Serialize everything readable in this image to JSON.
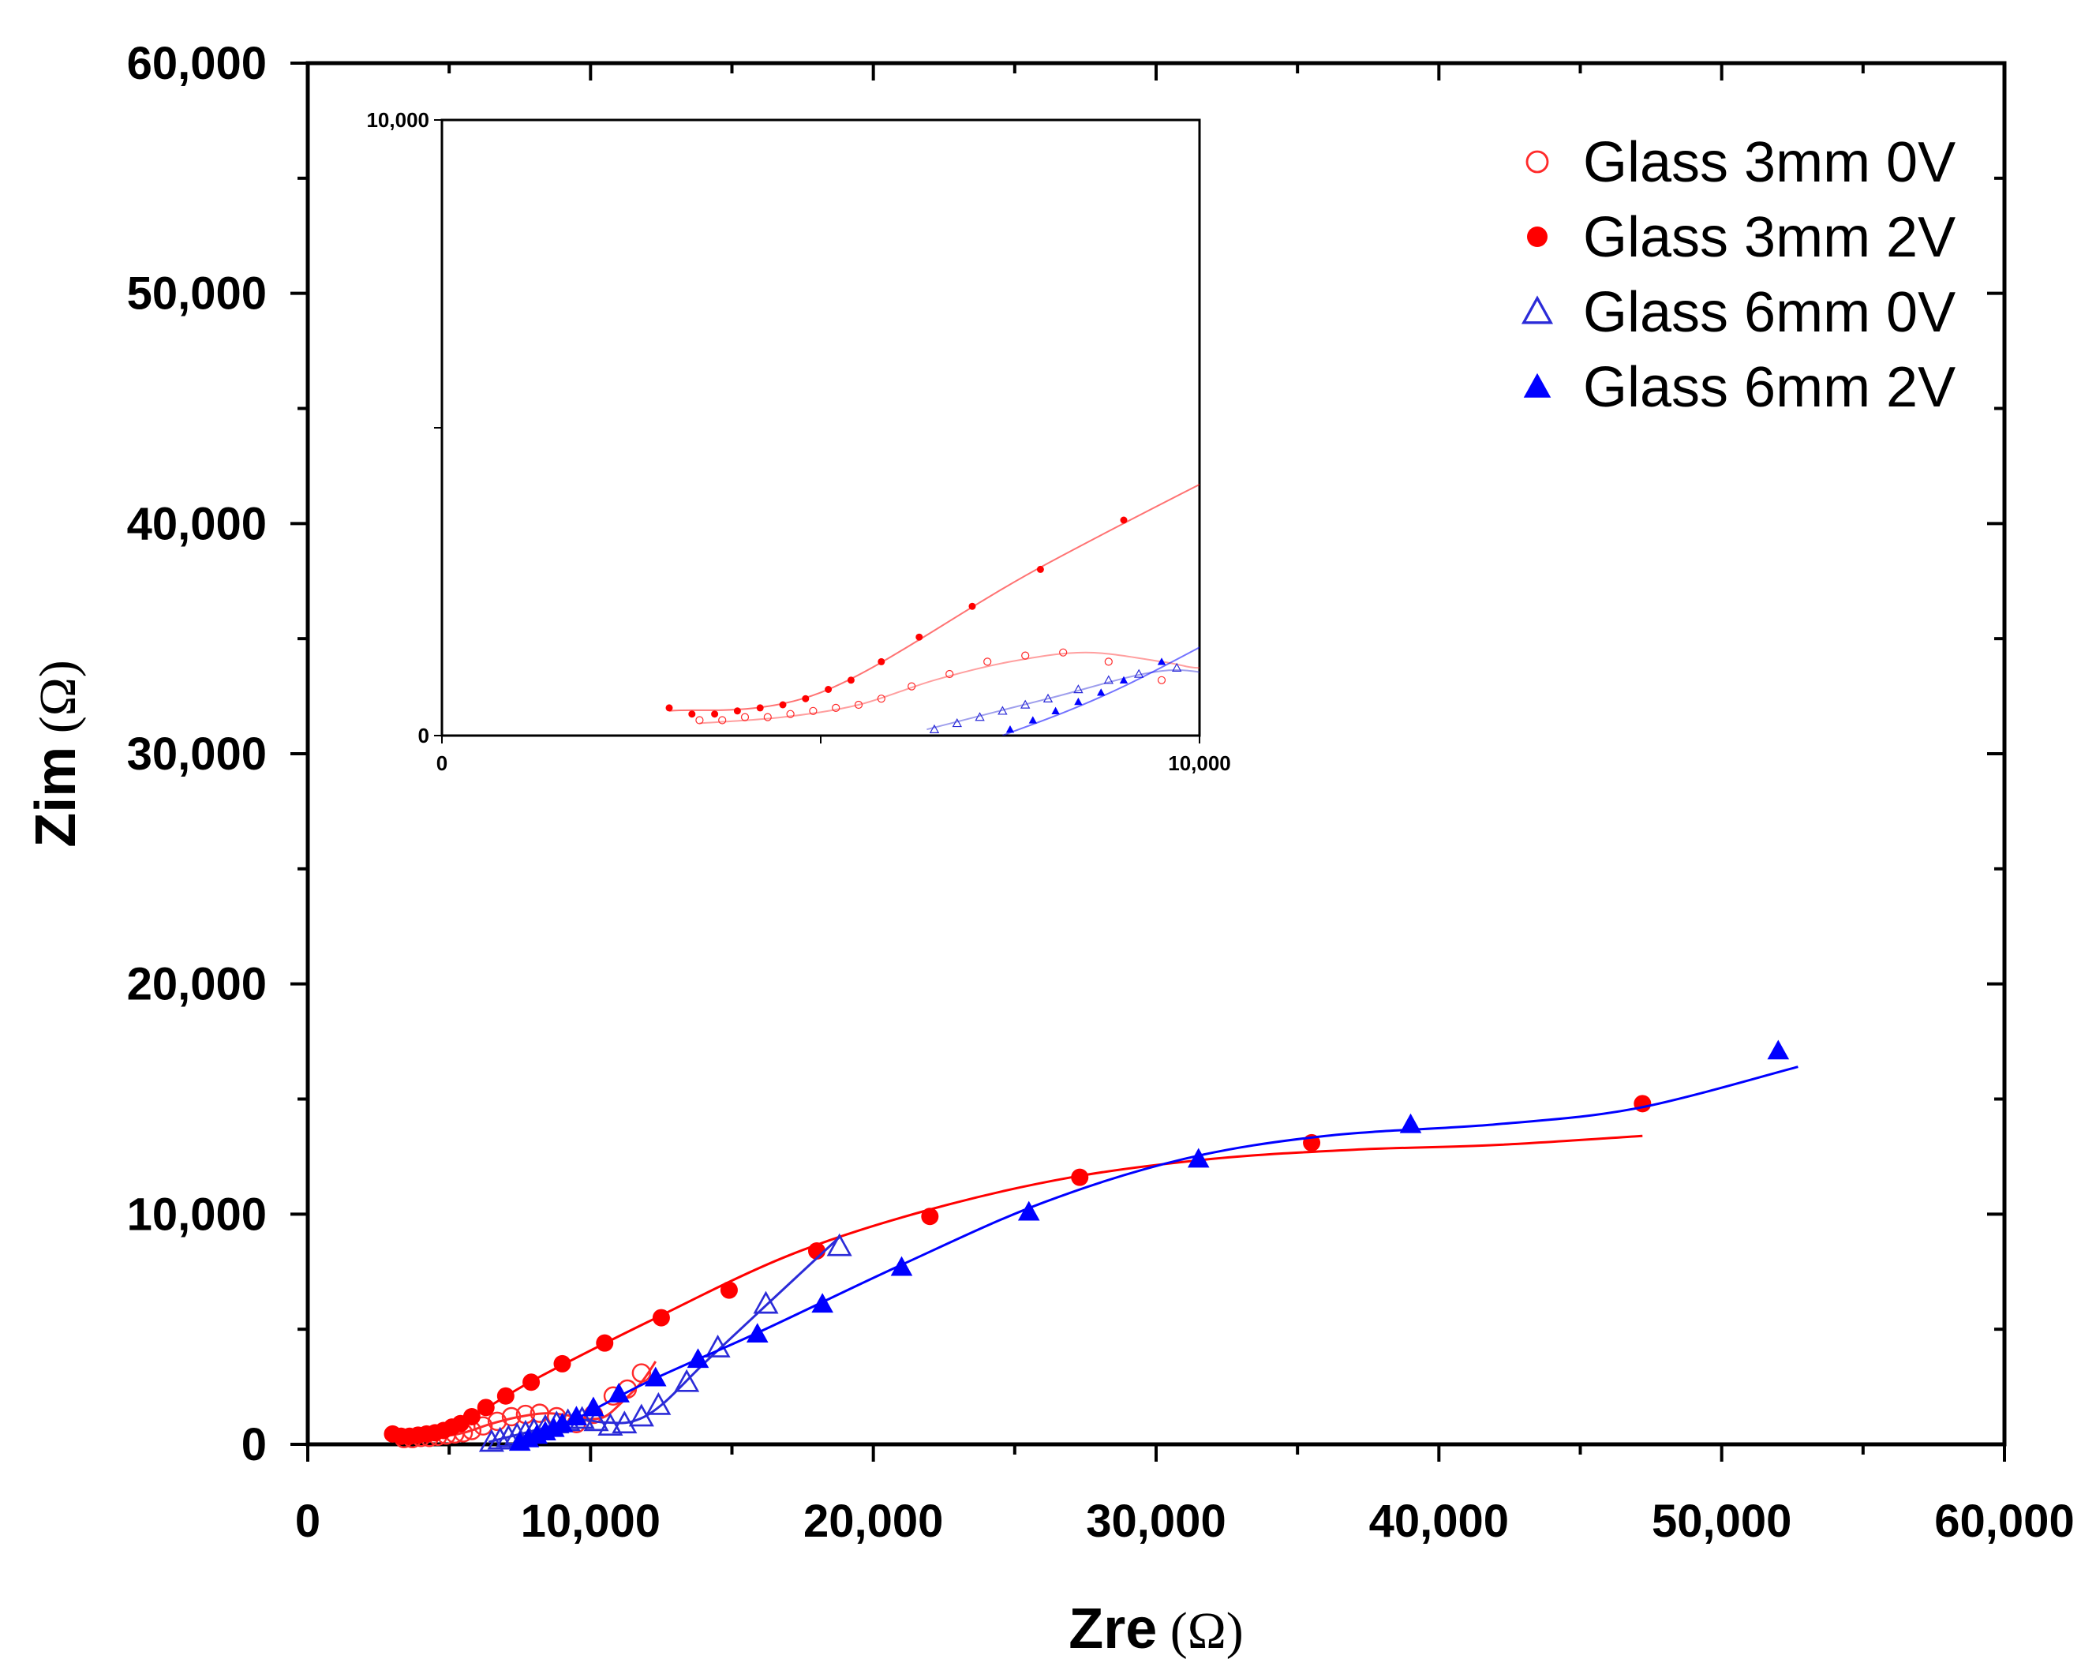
{
  "chart_data": {
    "type": "scatter",
    "title": "",
    "xlabel": "Zre",
    "ylabel": "Zim",
    "unit": "(Ω)",
    "xlim": [
      0,
      60000
    ],
    "ylim": [
      0,
      60000
    ],
    "x_ticks": [
      0,
      10000,
      20000,
      30000,
      40000,
      50000,
      60000
    ],
    "y_ticks": [
      0,
      10000,
      20000,
      30000,
      40000,
      50000,
      60000
    ],
    "x_tick_labels": [
      "0",
      "10,000",
      "20,000",
      "30,000",
      "40,000",
      "50,000",
      "60,000"
    ],
    "y_tick_labels": [
      "0",
      "10,000",
      "20,000",
      "30,000",
      "40,000",
      "50,000",
      "60,000"
    ],
    "legend_position": "top-right",
    "series": [
      {
        "name": "Glass 3mm 0V",
        "marker": "circle-open",
        "color": "#ff2a2a",
        "x": [
          3400,
          3700,
          4000,
          4300,
          4600,
          4900,
          5200,
          5500,
          5800,
          6200,
          6700,
          7200,
          7700,
          8200,
          8800,
          9500,
          10100,
          10800,
          11300,
          11800
        ],
        "y": [
          250,
          250,
          300,
          300,
          350,
          400,
          450,
          500,
          600,
          800,
          1000,
          1200,
          1300,
          1350,
          1200,
          900,
          1300,
          2100,
          2400,
          3100
        ],
        "fit_x": [
          3400,
          4500,
          5500,
          6500,
          7500,
          8500,
          9500,
          10000,
          10500,
          11000,
          11800,
          12300
        ],
        "fit_y": [
          200,
          300,
          500,
          900,
          1200,
          1350,
          1200,
          1100,
          1200,
          1700,
          2700,
          3600
        ]
      },
      {
        "name": "Glass 3mm 2V",
        "marker": "circle-filled",
        "color": "#ff0000",
        "x": [
          3000,
          3300,
          3600,
          3900,
          4200,
          4500,
          4800,
          5100,
          5400,
          5800,
          6300,
          7000,
          7900,
          9000,
          10500,
          12500,
          14900,
          18000,
          22000,
          27300,
          35500,
          47200
        ],
        "y": [
          450,
          350,
          350,
          400,
          450,
          500,
          600,
          750,
          900,
          1200,
          1600,
          2100,
          2700,
          3500,
          4400,
          5500,
          6700,
          8400,
          9900,
          11600,
          13100,
          14800
        ],
        "fit_x": [
          3000,
          5000,
          8000,
          12000,
          17000,
          22000,
          27000,
          32000,
          37000,
          42000,
          47200
        ],
        "fit_y": [
          400,
          700,
          2800,
          5300,
          8200,
          10200,
          11600,
          12400,
          12800,
          13000,
          13400
        ]
      },
      {
        "name": "Glass 6mm 0V",
        "marker": "triangle-open",
        "color": "#2b2bd8",
        "x": [
          6500,
          6800,
          7100,
          7400,
          7700,
          8000,
          8400,
          8800,
          9200,
          9700,
          10200,
          10700,
          11200,
          11800,
          12400,
          13400,
          14500,
          16200,
          18800
        ],
        "y": [
          100,
          200,
          300,
          400,
          500,
          600,
          750,
          900,
          1000,
          1100,
          1000,
          800,
          900,
          1200,
          1700,
          2700,
          4200,
          6100,
          8600
        ],
        "fit_x": [
          6400,
          8000,
          9500,
          10500,
          11500,
          12500,
          14000,
          16000,
          18800
        ],
        "fit_y": [
          100,
          600,
          1050,
          950,
          1000,
          1700,
          3500,
          5800,
          9000
        ]
      },
      {
        "name": "Glass 6mm 2V",
        "marker": "triangle-filled",
        "color": "#0000ff",
        "x": [
          7500,
          7800,
          8100,
          8400,
          8700,
          9000,
          9500,
          10100,
          11000,
          12300,
          13800,
          15900,
          18200,
          21000,
          25500,
          31500,
          39000,
          52000
        ],
        "y": [
          100,
          250,
          400,
          550,
          700,
          900,
          1200,
          1600,
          2200,
          2900,
          3700,
          4800,
          6100,
          7700,
          10100,
          12400,
          13900,
          17100
        ],
        "fit_x": [
          7400,
          9000,
          12000,
          16000,
          21000,
          26000,
          31000,
          36000,
          42000,
          47000,
          52700
        ],
        "fit_y": [
          0,
          800,
          2700,
          4900,
          7800,
          10500,
          12400,
          13400,
          13900,
          14600,
          16400
        ]
      }
    ],
    "inset": {
      "xlim": [
        0,
        10000
      ],
      "ylim": [
        0,
        10000
      ],
      "x_tick_labels": [
        "0",
        "10,000"
      ],
      "y_tick_labels": [
        "0",
        "10,000"
      ]
    }
  }
}
